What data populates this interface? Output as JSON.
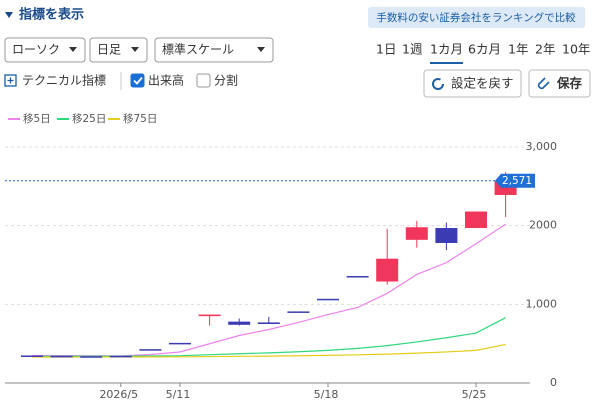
{
  "ui": {
    "toggle": "指標を表示",
    "compare_button": "手数料の安い証券会社をランキングで比較",
    "selects": [
      "ローソク",
      "日足",
      "標準スケール"
    ],
    "periods": [
      "1日",
      "1週",
      "1カ月",
      "6カ月",
      "1年",
      "2年",
      "10年"
    ],
    "active_period": 2,
    "technical": "テクニカル指標",
    "checkboxes": [
      {
        "label": "出来高",
        "checked": true
      },
      {
        "label": "分割",
        "checked": false
      }
    ],
    "reset": "設定を戻す",
    "save": "保存"
  },
  "chart_data": {
    "type": "candlestick",
    "categories": [
      null,
      null,
      null,
      "2026/5",
      null,
      "5/11",
      null,
      null,
      null,
      null,
      "5/18",
      null,
      null,
      null,
      null,
      "5/25",
      null
    ],
    "open": [
      350,
      345,
      340,
      345,
      430,
      510,
      850,
      780,
      770,
      910,
      1070,
      1360,
      1290,
      1820,
      1970,
      1970,
      2390
    ],
    "high": [
      350,
      345,
      340,
      345,
      430,
      510,
      870,
      820,
      840,
      910,
      1070,
      1360,
      1960,
      2060,
      2040,
      2180,
      2680
    ],
    "low": [
      350,
      345,
      340,
      345,
      430,
      510,
      730,
      730,
      750,
      910,
      1070,
      1360,
      1250,
      1720,
      1690,
      1970,
      2110
    ],
    "close": [
      350,
      345,
      340,
      345,
      430,
      510,
      870,
      740,
      750,
      910,
      1070,
      1360,
      1580,
      1980,
      1780,
      2180,
      2571
    ],
    "up_color": "#f0365a",
    "down_color": "#3b3bb3",
    "series": [
      {
        "name": "移5日",
        "color": "#ee82ee",
        "values": [
          350,
          348,
          346,
          345,
          362,
          394,
          499,
          604,
          680,
          770,
          870,
          960,
          1140,
          1380,
          1530,
          1770,
          2020
        ]
      },
      {
        "name": "移25日",
        "color": "#2ed87c",
        "values": [
          340,
          340,
          341,
          341,
          343,
          347,
          360,
          372,
          383,
          397,
          415,
          440,
          475,
          522,
          575,
          635,
          830
        ]
      },
      {
        "name": "移75日",
        "color": "#e6cc1c",
        "values": [
          330,
          330,
          331,
          331,
          332,
          333,
          336,
          339,
          342,
          346,
          351,
          358,
          367,
          380,
          395,
          415,
          490
        ]
      }
    ],
    "ylim": [
      0,
      3000
    ],
    "yticks": [
      0,
      {
        "value": 1000,
        "label": "1,000"
      },
      2000,
      {
        "value": 3000,
        "label": "3,000"
      }
    ],
    "grid": true,
    "price_line": {
      "value": 2571,
      "label": "2,571",
      "color": "#1f6fd6"
    }
  }
}
